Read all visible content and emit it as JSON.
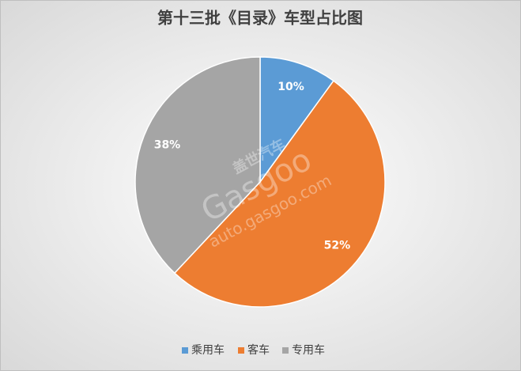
{
  "chart_data": {
    "type": "pie",
    "title": "第十三批《目录》车型占比图",
    "categories": [
      "乘用车",
      "客车",
      "专用车"
    ],
    "values": [
      10,
      52,
      38
    ],
    "value_labels": [
      "10%",
      "52%",
      "38%"
    ],
    "colors": [
      "#5b9bd5",
      "#ed7d31",
      "#a5a5a5"
    ],
    "legend": "bottom",
    "watermark": [
      "盖世汽车",
      "Gasgoo",
      "auto.gasgoo.com"
    ]
  }
}
